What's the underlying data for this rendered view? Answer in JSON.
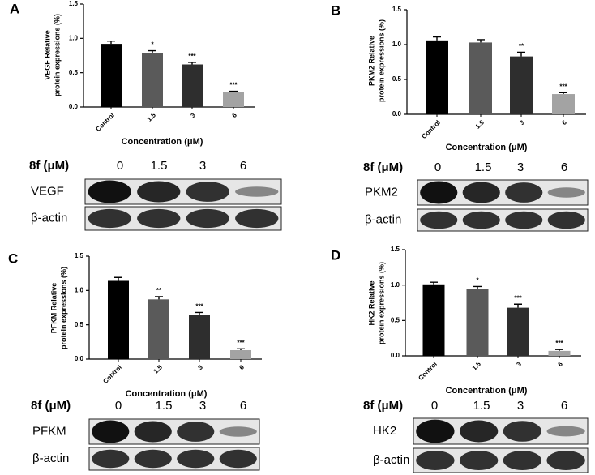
{
  "chart_data": [
    {
      "type": "bar",
      "panel": "A",
      "y_label": [
        "VEGF Relative",
        "protein expressions (%)"
      ],
      "x_label": "Concentration (μM)",
      "categories": [
        "Control",
        "1.5",
        "3",
        "6"
      ],
      "values": [
        0.92,
        0.78,
        0.62,
        0.22
      ],
      "errors": [
        0.04,
        0.04,
        0.03,
        0.01
      ],
      "annotations": [
        null,
        "*",
        "***",
        "***"
      ],
      "colors": [
        "#000000",
        "#5a5a5a",
        "#2e2e2e",
        "#a3a3a3"
      ],
      "ylim": [
        0,
        1.5
      ],
      "yticks": [
        {
          "value": 0,
          "label": "0.0"
        },
        0.5,
        {
          "value": 1,
          "label": "1.0"
        },
        1.5
      ]
    },
    {
      "type": "bar",
      "panel": "B",
      "y_label": [
        "PKM2 Relative",
        "protein expressions (%)"
      ],
      "x_label": "Concentration (μM)",
      "categories": [
        "Control",
        "1.5",
        "3",
        "6"
      ],
      "values": [
        1.06,
        1.03,
        0.83,
        0.29
      ],
      "errors": [
        0.05,
        0.04,
        0.06,
        0.02
      ],
      "annotations": [
        null,
        null,
        "**",
        "***"
      ],
      "colors": [
        "#000000",
        "#5a5a5a",
        "#2e2e2e",
        "#a3a3a3"
      ],
      "ylim": [
        0,
        1.5
      ],
      "yticks": [
        {
          "value": 0,
          "label": "0.0"
        },
        0.5,
        {
          "value": 1,
          "label": "1.0"
        },
        1.5
      ]
    },
    {
      "type": "bar",
      "panel": "C",
      "y_label": [
        "PFKM Relative",
        "protein expressions (%)"
      ],
      "x_label": "Concentration (μM)",
      "categories": [
        "Control",
        "1.5",
        "3",
        "6"
      ],
      "values": [
        1.14,
        0.87,
        0.64,
        0.13
      ],
      "errors": [
        0.05,
        0.04,
        0.04,
        0.02
      ],
      "annotations": [
        null,
        "**",
        "***",
        "***"
      ],
      "colors": [
        "#000000",
        "#5a5a5a",
        "#2e2e2e",
        "#a3a3a3"
      ],
      "ylim": [
        0,
        1.5
      ],
      "yticks": [
        {
          "value": 0,
          "label": "0.0"
        },
        0.5,
        {
          "value": 1,
          "label": "1.0"
        },
        1.5
      ]
    },
    {
      "type": "bar",
      "panel": "D",
      "y_label": [
        "HK2 Relative",
        "protein expressions (%)"
      ],
      "x_label": "Concentration (μM)",
      "categories": [
        "Control",
        "1.5",
        "3",
        "6"
      ],
      "values": [
        1.01,
        0.94,
        0.68,
        0.07
      ],
      "errors": [
        0.03,
        0.04,
        0.05,
        0.02
      ],
      "annotations": [
        null,
        "*",
        "***",
        "***"
      ],
      "colors": [
        "#000000",
        "#5a5a5a",
        "#2e2e2e",
        "#a3a3a3"
      ],
      "ylim": [
        0,
        1.5
      ],
      "yticks": [
        {
          "value": 0,
          "label": "0.0"
        },
        0.5,
        {
          "value": 1,
          "label": "1.0"
        },
        1.5
      ]
    }
  ],
  "blots": [
    {
      "header": "8f (μM)",
      "lanes": [
        "0",
        "1.5",
        "3",
        "6"
      ],
      "rows": [
        "VEGF",
        "β-actin"
      ]
    },
    {
      "header": "8f (μM)",
      "lanes": [
        "0",
        "1.5",
        "3",
        "6"
      ],
      "rows": [
        "PKM2",
        "β-actin"
      ]
    },
    {
      "header": "8f (μM)",
      "lanes": [
        "0",
        "1.5",
        "3",
        "6"
      ],
      "rows": [
        "PFKM",
        "β-actin"
      ]
    },
    {
      "header": "8f (μM)",
      "lanes": [
        "0",
        "1.5",
        "3",
        "6"
      ],
      "rows": [
        "HK2",
        "β-actin"
      ]
    }
  ]
}
